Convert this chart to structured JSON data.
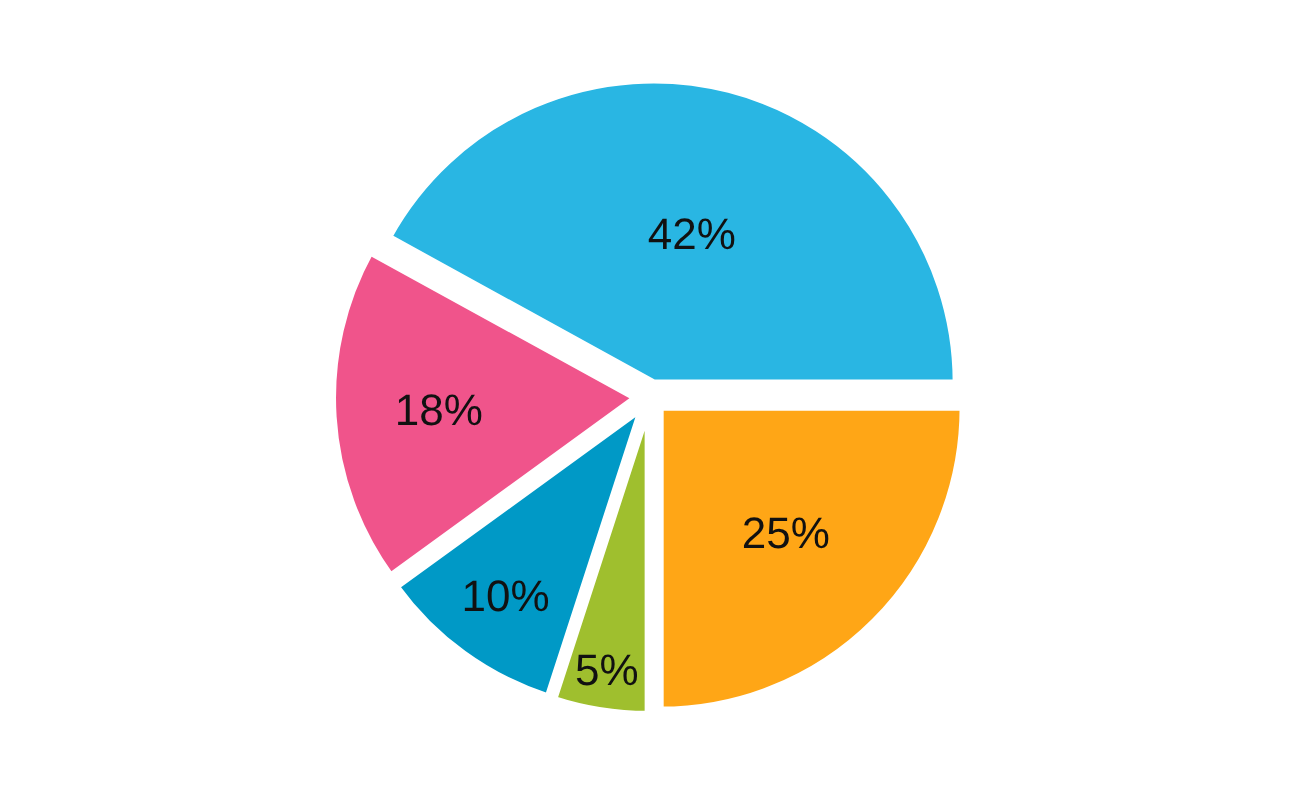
{
  "chart_data": {
    "type": "pie",
    "categories": [
      null,
      null,
      null,
      null,
      null
    ],
    "values": [
      25,
      5,
      10,
      18,
      42
    ],
    "value_labels": [
      "25%",
      "5%",
      "10%",
      "18%",
      "42%"
    ],
    "colors": [
      "#ffa616",
      "#9fbf2e",
      "#0099c6",
      "#f0548b",
      "#29b6e3"
    ],
    "legend": false
  }
}
